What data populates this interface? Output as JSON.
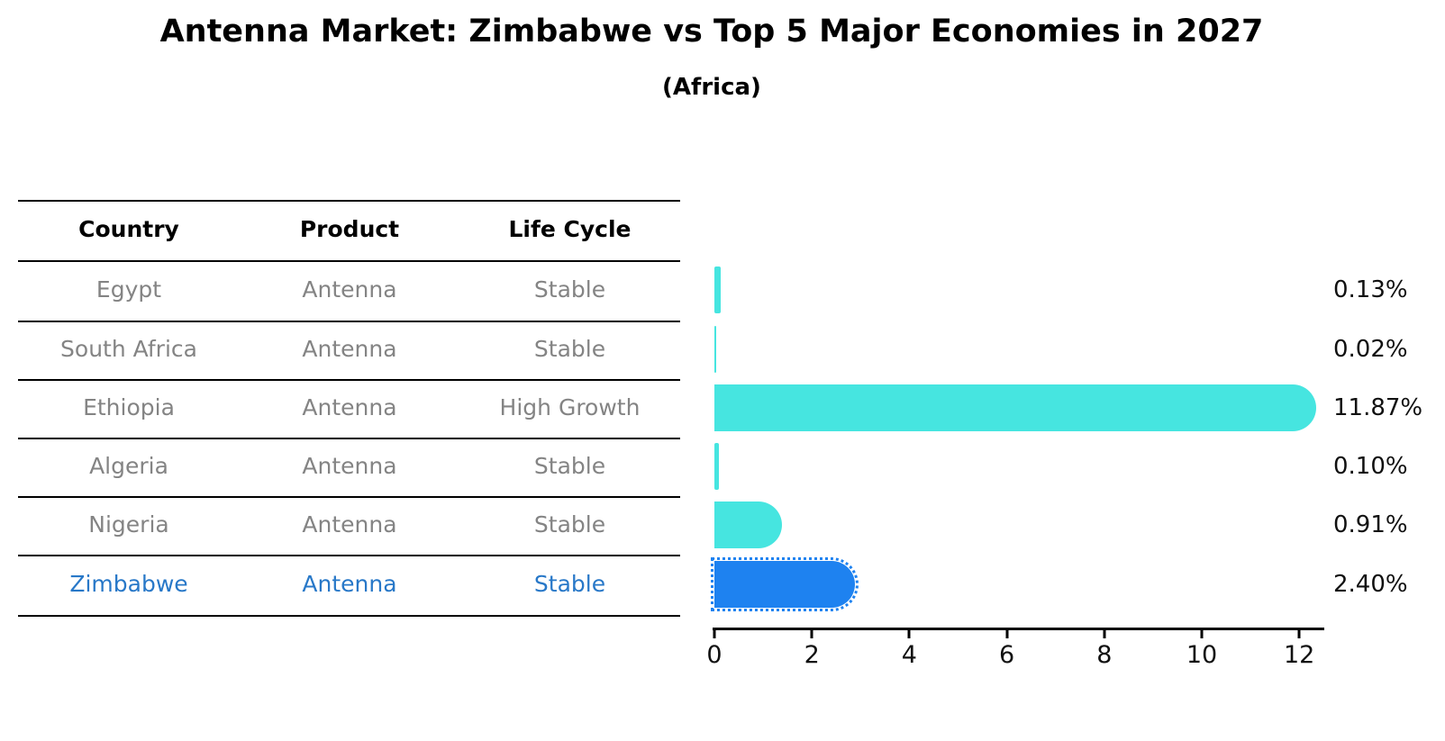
{
  "title": "Antenna Market: Zimbabwe vs Top 5 Major Economies in 2027",
  "subtitle": "(Africa)",
  "table": {
    "headers": [
      "Country",
      "Product",
      "Life Cycle"
    ],
    "rows": [
      {
        "country": "Egypt",
        "product": "Antenna",
        "life_cycle": "Stable"
      },
      {
        "country": "South Africa",
        "product": "Antenna",
        "life_cycle": "Stable"
      },
      {
        "country": "Ethiopia",
        "product": "Antenna",
        "life_cycle": "High Growth"
      },
      {
        "country": "Algeria",
        "product": "Antenna",
        "life_cycle": "Stable"
      },
      {
        "country": "Nigeria",
        "product": "Antenna",
        "life_cycle": "Stable"
      },
      {
        "country": "Zimbabwe",
        "product": "Antenna",
        "life_cycle": "Stable"
      }
    ]
  },
  "chart_data": {
    "type": "bar",
    "orientation": "horizontal",
    "title": "Antenna Market: Zimbabwe vs Top 5 Major Economies in 2027",
    "subtitle": "(Africa)",
    "categories": [
      "Egypt",
      "South Africa",
      "Ethiopia",
      "Algeria",
      "Nigeria",
      "Zimbabwe"
    ],
    "values": [
      0.13,
      0.02,
      11.87,
      0.1,
      0.91,
      2.4
    ],
    "value_labels": [
      "0.13%",
      "0.02%",
      "11.87%",
      "0.10%",
      "0.91%",
      "2.40%"
    ],
    "highlight_index": 5,
    "xticks": [
      0,
      2,
      4,
      6,
      8,
      10,
      12
    ],
    "xlim": [
      0,
      12.5
    ],
    "xlabel": "",
    "ylabel": "",
    "grid": false,
    "legend": "none"
  },
  "colors": {
    "bar_default": "#46E5E0",
    "bar_highlight": "#1E82F0",
    "highlight_text": "#2878C8",
    "body_text": "#848484",
    "heading_text": "#000000"
  }
}
